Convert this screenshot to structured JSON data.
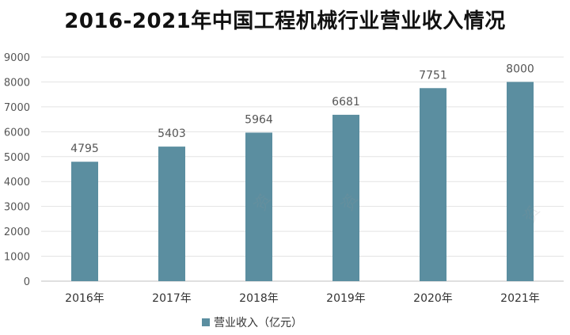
{
  "chart_data": {
    "type": "bar",
    "title": "2016-2021年中国工程机械行业营业收入情况",
    "categories": [
      "2016年",
      "2017年",
      "2018年",
      "2019年",
      "2020年",
      "2021年"
    ],
    "series": [
      {
        "name": "营业收入（亿元）",
        "values": [
          4795,
          5403,
          5964,
          6681,
          7751,
          8000
        ]
      }
    ],
    "data_labels": [
      "4795",
      "5403",
      "5964",
      "6681",
      "7751",
      "8000"
    ],
    "yticks": [
      "0",
      "1000",
      "2000",
      "3000",
      "4000",
      "5000",
      "6000",
      "7000",
      "8000",
      "9000"
    ],
    "ylim": [
      0,
      9000
    ],
    "grid": true,
    "legend_position": "bottom-left",
    "bar_color": "#5b8ea0"
  }
}
